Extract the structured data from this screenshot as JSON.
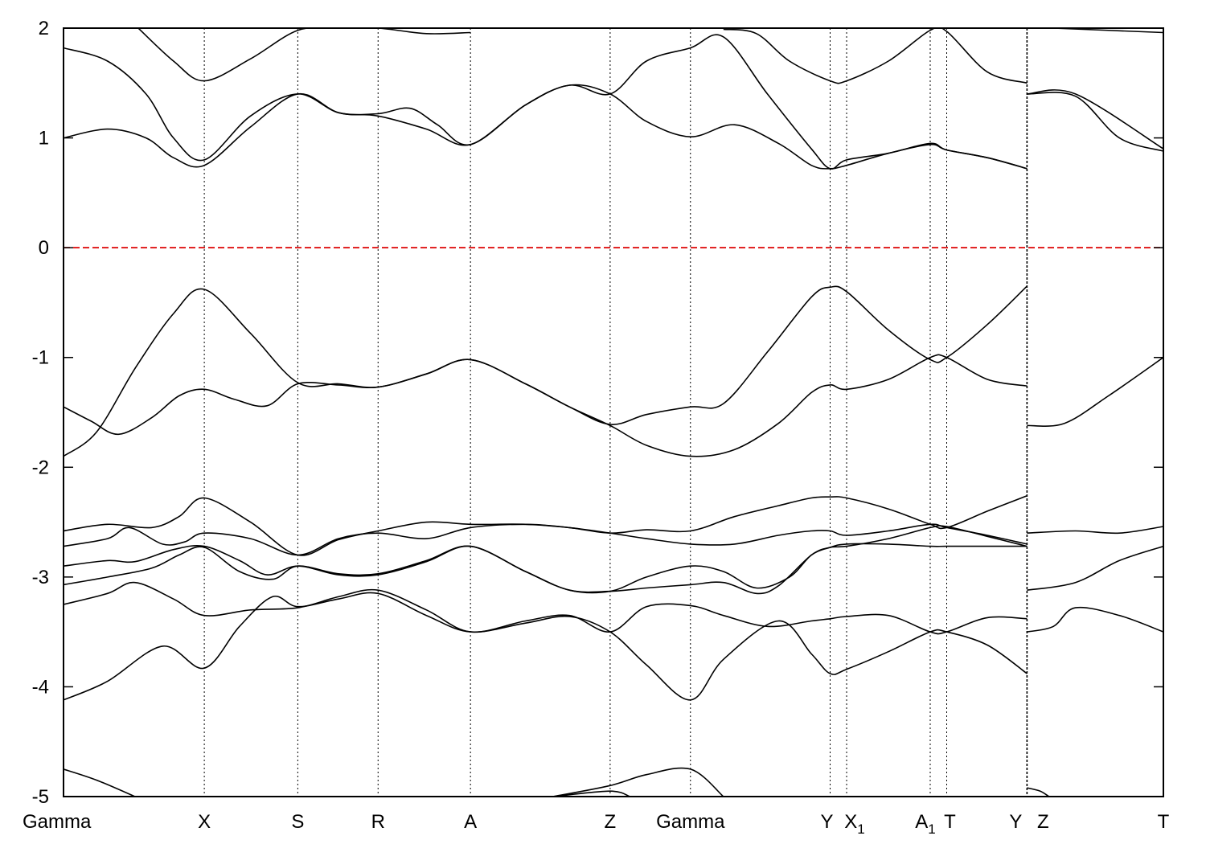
{
  "chart_data": {
    "type": "line",
    "title": "",
    "xlabel": "",
    "ylabel": "",
    "ylim": [
      -5,
      2
    ],
    "yticks": [
      2,
      1,
      0,
      -1,
      -2,
      -3,
      -4,
      -5
    ],
    "x_range": [
      0,
      1.0
    ],
    "fermi_level": 0,
    "fermi_color": "#dd0000",
    "line_color": "#000000",
    "grid": false,
    "legend": "none",
    "kpoints": [
      {
        "label": "Gamma",
        "sub": "",
        "x": 0.0
      },
      {
        "label": "X",
        "sub": "",
        "x": 0.128
      },
      {
        "label": "S",
        "sub": "",
        "x": 0.213
      },
      {
        "label": "R",
        "sub": "",
        "x": 0.286
      },
      {
        "label": "A",
        "sub": "",
        "x": 0.37
      },
      {
        "label": "Z",
        "sub": "",
        "x": 0.497
      },
      {
        "label": "Gamma",
        "sub": "",
        "x": 0.57
      },
      {
        "label": "Y",
        "sub": "",
        "x": 0.697
      },
      {
        "label": "X",
        "sub": "1",
        "x": 0.712
      },
      {
        "label": "A",
        "sub": "1",
        "x": 0.788
      },
      {
        "label": "T",
        "sub": "",
        "x": 0.803
      },
      {
        "label": "Y",
        "sub": "",
        "x": 0.876
      },
      {
        "label": "Z",
        "sub": "",
        "x": 0.876
      },
      {
        "label": "T",
        "sub": "",
        "x": 1.0
      }
    ],
    "segment_breaks": [
      0.876
    ],
    "series": [
      {
        "x": [
          0,
          0.03,
          0.065,
          0.1,
          0.128,
          0.17,
          0.213,
          0.25,
          0.286,
          0.33,
          0.37,
          0.42,
          0.46,
          0.497,
          0.53,
          0.57,
          0.6,
          0.64,
          0.68,
          0.697,
          0.712,
          0.75,
          0.788,
          0.803,
          0.84,
          0.876
        ],
        "values": [
          -1.9,
          -1.68,
          -1.1,
          -0.6,
          -0.38,
          -0.78,
          -1.23,
          -1.24,
          -1.27,
          -1.15,
          -1.02,
          -1.24,
          -1.45,
          -1.61,
          -1.52,
          -1.45,
          -1.42,
          -0.95,
          -0.45,
          -0.36,
          -0.4,
          -0.75,
          -1.02,
          -1.0,
          -0.7,
          -0.35
        ]
      },
      {
        "x": [
          0,
          0.025,
          0.05,
          0.08,
          0.105,
          0.128,
          0.155,
          0.185,
          0.213,
          0.25,
          0.286,
          0.33,
          0.37,
          0.42,
          0.46,
          0.497,
          0.53,
          0.57,
          0.61,
          0.65,
          0.68,
          0.697,
          0.712,
          0.75,
          0.788,
          0.803,
          0.84,
          0.876
        ],
        "values": [
          -1.45,
          -1.58,
          -1.7,
          -1.55,
          -1.35,
          -1.29,
          -1.38,
          -1.44,
          -1.24,
          -1.25,
          -1.27,
          -1.15,
          -1.02,
          -1.24,
          -1.45,
          -1.62,
          -1.8,
          -1.9,
          -1.84,
          -1.6,
          -1.32,
          -1.25,
          -1.29,
          -1.2,
          -1.0,
          -1.0,
          -1.2,
          -1.26
        ]
      },
      {
        "x": [
          0.876,
          0.91,
          0.95,
          1.0
        ],
        "values": [
          -1.62,
          -1.6,
          -1.35,
          -1.0
        ]
      },
      {
        "x": [
          0,
          0.04,
          0.075,
          0.1,
          0.128,
          0.17,
          0.213,
          0.25,
          0.286,
          0.33,
          0.37,
          0.42,
          0.46,
          0.497,
          0.53,
          0.57,
          0.61,
          0.65,
          0.68,
          0.697,
          0.712,
          0.75,
          0.788,
          0.803,
          0.84,
          0.876
        ],
        "values": [
          1.0,
          1.08,
          1.0,
          0.82,
          0.75,
          1.1,
          1.4,
          1.23,
          1.2,
          1.08,
          0.94,
          1.3,
          1.48,
          1.4,
          1.15,
          1.01,
          1.12,
          0.95,
          0.75,
          0.72,
          0.75,
          0.86,
          0.94,
          0.89,
          0.82,
          0.72
        ]
      },
      {
        "x": [
          0,
          0.04,
          0.075,
          0.1,
          0.128,
          0.17,
          0.213,
          0.25,
          0.286,
          0.315,
          0.34,
          0.37,
          0.42,
          0.46,
          0.497,
          0.53,
          0.57,
          0.6,
          0.64,
          0.68,
          0.697,
          0.712,
          0.75,
          0.788,
          0.803,
          0.84,
          0.876
        ],
        "values": [
          1.82,
          1.7,
          1.4,
          1.0,
          0.8,
          1.2,
          1.4,
          1.23,
          1.22,
          1.27,
          1.12,
          0.94,
          1.3,
          1.48,
          1.4,
          1.7,
          1.82,
          1.92,
          1.4,
          0.9,
          0.72,
          0.8,
          0.86,
          0.95,
          0.89,
          0.82,
          0.72
        ]
      },
      {
        "x": [
          0.068,
          0.1,
          0.128,
          0.17,
          0.213,
          0.25,
          0.286,
          0.33,
          0.37
        ],
        "values": [
          2.0,
          1.7,
          1.52,
          1.72,
          1.98,
          2.0,
          2.0,
          1.95,
          1.96
        ]
      },
      {
        "x": [
          0.6,
          0.63,
          0.66,
          0.697,
          0.712,
          0.75,
          0.788,
          0.803,
          0.84,
          0.876
        ],
        "values": [
          1.99,
          1.95,
          1.7,
          1.52,
          1.52,
          1.7,
          1.98,
          1.97,
          1.6,
          1.5
        ]
      },
      {
        "x": [
          0.876,
          0.92,
          0.96,
          1.0
        ],
        "values": [
          1.4,
          1.38,
          1.0,
          0.88
        ]
      },
      {
        "x": [
          0.876,
          0.92,
          1.0
        ],
        "values": [
          1.4,
          1.4,
          0.9
        ]
      },
      {
        "x": [
          0.9,
          1.0
        ],
        "values": [
          2.0,
          1.96
        ]
      },
      {
        "x": [
          0,
          0.04,
          0.08,
          0.105,
          0.128,
          0.17,
          0.213,
          0.25,
          0.286,
          0.33,
          0.37,
          0.42,
          0.46,
          0.497,
          0.53,
          0.57,
          0.61,
          0.65,
          0.68,
          0.697,
          0.712,
          0.75,
          0.788,
          0.803,
          0.84,
          0.876
        ],
        "values": [
          -2.58,
          -2.52,
          -2.55,
          -2.45,
          -2.28,
          -2.5,
          -2.8,
          -2.66,
          -2.58,
          -2.5,
          -2.52,
          -2.52,
          -2.55,
          -2.6,
          -2.57,
          -2.58,
          -2.45,
          -2.35,
          -2.28,
          -2.27,
          -2.28,
          -2.38,
          -2.52,
          -2.55,
          -2.4,
          -2.26
        ]
      },
      {
        "x": [
          0,
          0.04,
          0.06,
          0.09,
          0.11,
          0.128,
          0.17,
          0.213,
          0.25,
          0.286,
          0.33,
          0.37,
          0.42,
          0.46,
          0.497,
          0.53,
          0.57,
          0.61,
          0.65,
          0.68,
          0.697,
          0.712,
          0.75,
          0.788,
          0.803,
          0.84,
          0.876
        ],
        "values": [
          -2.72,
          -2.65,
          -2.55,
          -2.7,
          -2.68,
          -2.6,
          -2.65,
          -2.8,
          -2.65,
          -2.6,
          -2.65,
          -2.55,
          -2.52,
          -2.55,
          -2.6,
          -2.65,
          -2.7,
          -2.7,
          -2.62,
          -2.58,
          -2.58,
          -2.62,
          -2.58,
          -2.52,
          -2.55,
          -2.62,
          -2.7
        ]
      },
      {
        "x": [
          0,
          0.04,
          0.065,
          0.1,
          0.128,
          0.16,
          0.185,
          0.213,
          0.25,
          0.286,
          0.33,
          0.37,
          0.42,
          0.46,
          0.497,
          0.53,
          0.57,
          0.6,
          0.63,
          0.66,
          0.68,
          0.697,
          0.712,
          0.75,
          0.788,
          0.803,
          0.84,
          0.876
        ],
        "values": [
          -2.9,
          -2.85,
          -2.86,
          -2.75,
          -2.72,
          -2.85,
          -2.98,
          -2.9,
          -2.98,
          -2.98,
          -2.86,
          -2.72,
          -2.95,
          -3.12,
          -3.13,
          -3.0,
          -2.9,
          -2.95,
          -3.1,
          -3.0,
          -2.8,
          -2.73,
          -2.7,
          -2.7,
          -2.72,
          -2.72,
          -2.72,
          -2.72
        ]
      },
      {
        "x": [
          0,
          0.04,
          0.08,
          0.105,
          0.128,
          0.16,
          0.19,
          0.213,
          0.25,
          0.286,
          0.33,
          0.37,
          0.42,
          0.46,
          0.497,
          0.53,
          0.57,
          0.6,
          0.63,
          0.65,
          0.68,
          0.697,
          0.712,
          0.75,
          0.788,
          0.803,
          0.84,
          0.876
        ],
        "values": [
          -3.07,
          -3.0,
          -2.92,
          -2.8,
          -2.73,
          -2.95,
          -3.02,
          -2.9,
          -2.97,
          -2.97,
          -2.85,
          -2.72,
          -2.95,
          -3.12,
          -3.13,
          -3.1,
          -3.07,
          -3.05,
          -3.15,
          -3.08,
          -2.8,
          -2.73,
          -2.72,
          -2.65,
          -2.55,
          -2.54,
          -2.63,
          -2.72
        ]
      },
      {
        "x": [
          0,
          0.04,
          0.065,
          0.1,
          0.128,
          0.17,
          0.213,
          0.25,
          0.286,
          0.33,
          0.37,
          0.42,
          0.46,
          0.497,
          0.53,
          0.57,
          0.6,
          0.64,
          0.68,
          0.697,
          0.712,
          0.75,
          0.788,
          0.803,
          0.84,
          0.876
        ],
        "values": [
          -3.25,
          -3.15,
          -3.05,
          -3.2,
          -3.35,
          -3.3,
          -3.28,
          -3.18,
          -3.12,
          -3.3,
          -3.5,
          -3.4,
          -3.35,
          -3.5,
          -3.27,
          -3.26,
          -3.35,
          -3.45,
          -3.4,
          -3.38,
          -3.36,
          -3.35,
          -3.5,
          -3.5,
          -3.37,
          -3.38
        ]
      },
      {
        "x": [
          0,
          0.04,
          0.09,
          0.128,
          0.16,
          0.19,
          0.213,
          0.25,
          0.286,
          0.33,
          0.37,
          0.42,
          0.46,
          0.497,
          0.53,
          0.57,
          0.6,
          0.65,
          0.68,
          0.697,
          0.712,
          0.75,
          0.788,
          0.803,
          0.84,
          0.876
        ],
        "values": [
          -4.12,
          -3.95,
          -3.63,
          -3.83,
          -3.45,
          -3.18,
          -3.27,
          -3.2,
          -3.15,
          -3.35,
          -3.5,
          -3.42,
          -3.36,
          -3.5,
          -3.8,
          -4.12,
          -3.75,
          -3.4,
          -3.7,
          -3.88,
          -3.84,
          -3.68,
          -3.5,
          -3.5,
          -3.62,
          -3.88
        ]
      },
      {
        "x": [
          0.876,
          0.92,
          0.96,
          1.0
        ],
        "values": [
          -2.6,
          -2.58,
          -2.6,
          -2.54
        ]
      },
      {
        "x": [
          0.876,
          0.92,
          0.96,
          1.0
        ],
        "values": [
          -3.12,
          -3.05,
          -2.85,
          -2.72
        ]
      },
      {
        "x": [
          0.876,
          0.9,
          0.92,
          0.96,
          1.0
        ],
        "values": [
          -3.5,
          -3.45,
          -3.28,
          -3.35,
          -3.5
        ]
      },
      {
        "x": [
          0,
          0.03,
          0.065
        ],
        "values": [
          -4.75,
          -4.85,
          -5.0
        ]
      },
      {
        "x": [
          0.445,
          0.497,
          0.53,
          0.57,
          0.6
        ],
        "values": [
          -5.0,
          -4.9,
          -4.8,
          -4.75,
          -5.0
        ]
      },
      {
        "x": [
          0.445,
          0.497,
          0.515
        ],
        "values": [
          -5.0,
          -4.95,
          -5.0
        ]
      },
      {
        "x": [
          0.876,
          0.888,
          0.896
        ],
        "values": [
          -4.92,
          -4.95,
          -5.0
        ]
      }
    ]
  }
}
